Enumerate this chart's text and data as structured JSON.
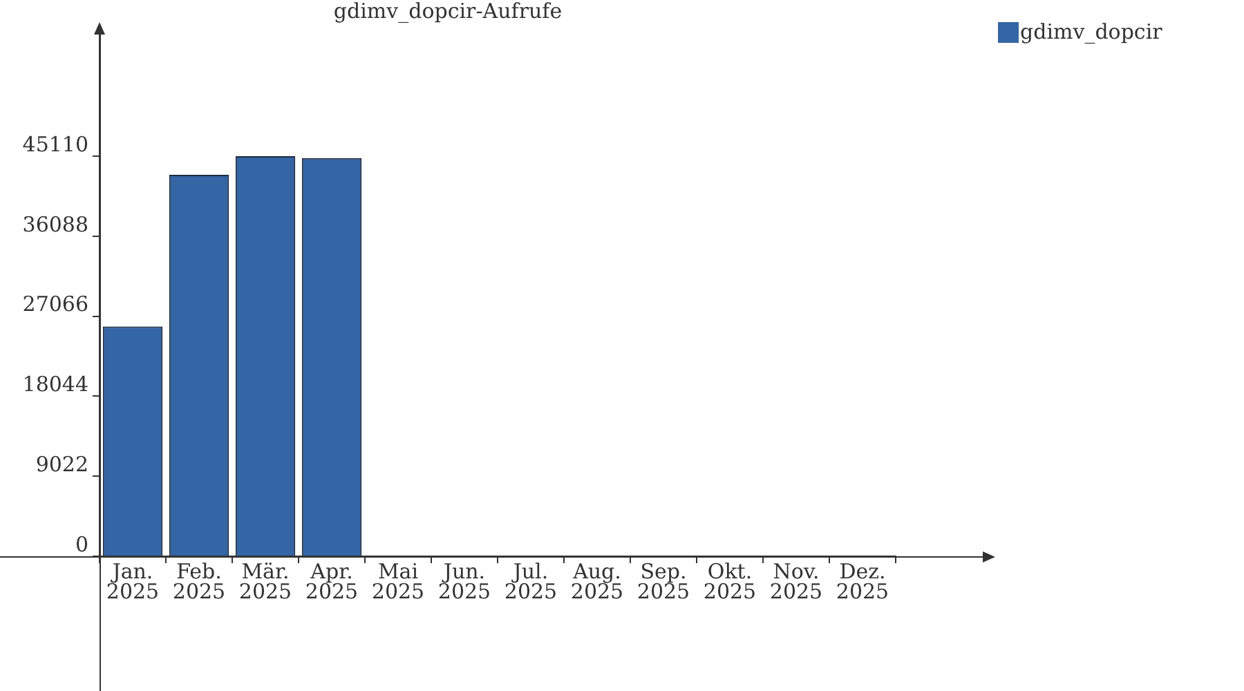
{
  "chart_data": {
    "type": "bar",
    "title": "gdimv_dopcir-Aufrufe",
    "categories": [
      "Jan. 2025",
      "Feb. 2025",
      "Mär. 2025",
      "Apr. 2025",
      "Mai 2025",
      "Jun. 2025",
      "Jul. 2025",
      "Aug. 2025",
      "Sep. 2025",
      "Okt. 2025",
      "Nov. 2025",
      "Dez. 2025"
    ],
    "series": [
      {
        "name": "gdimv_dopcir",
        "color": "#3465a4",
        "values": [
          25900,
          43000,
          45110,
          44900,
          0,
          0,
          0,
          0,
          0,
          0,
          0,
          0
        ]
      }
    ],
    "ylim": [
      0,
      59600
    ],
    "yticks": [
      0,
      9022,
      18044,
      27066,
      36088,
      45110
    ],
    "grid": false,
    "legend": "top right"
  }
}
